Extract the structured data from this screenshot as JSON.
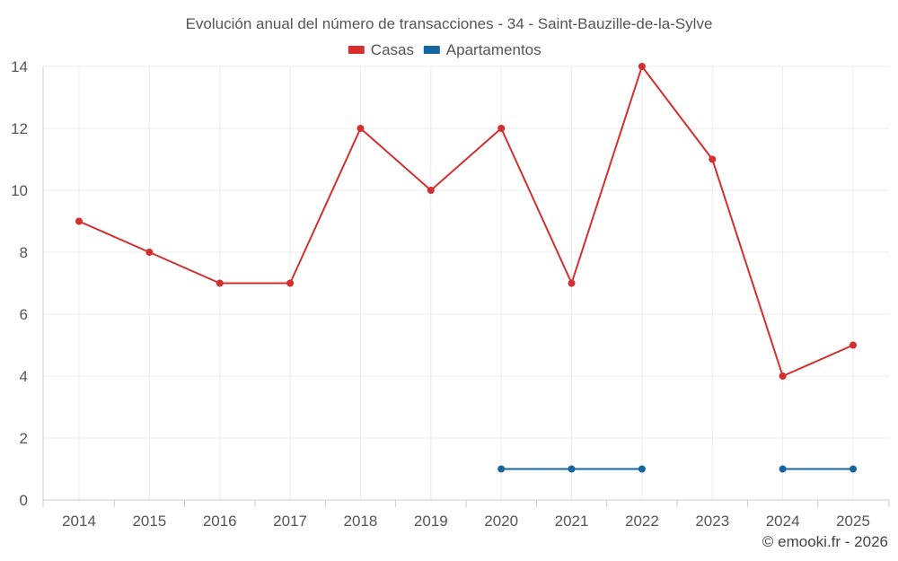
{
  "chart_data": {
    "type": "line",
    "title": "Evolución anual del número de transacciones - 34 - Saint-Bauzille-de-la-Sylve",
    "categories": [
      "2014",
      "2015",
      "2016",
      "2017",
      "2018",
      "2019",
      "2020",
      "2021",
      "2022",
      "2023",
      "2024",
      "2025"
    ],
    "series": [
      {
        "name": "Casas",
        "color": "#d32f2f",
        "values": [
          9,
          8,
          7,
          7,
          12,
          10,
          12,
          7,
          14,
          11,
          4,
          5
        ]
      },
      {
        "name": "Apartamentos",
        "color": "#1565a0",
        "values": [
          null,
          null,
          null,
          null,
          null,
          null,
          1,
          1,
          1,
          null,
          1,
          1
        ]
      }
    ],
    "ylim": [
      0,
      14
    ],
    "yticks": [
      0,
      2,
      4,
      6,
      8,
      10,
      12,
      14
    ],
    "grid": true,
    "legend": "top-center",
    "xlabel": "",
    "ylabel": ""
  },
  "credit": "© emooki.fr - 2026"
}
